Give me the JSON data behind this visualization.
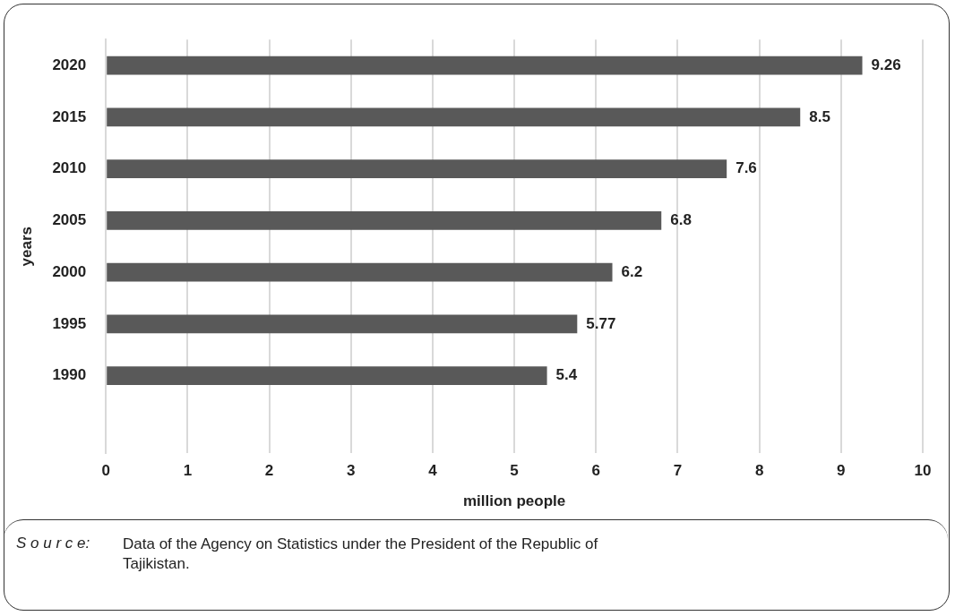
{
  "chart_data": {
    "type": "bar",
    "orientation": "horizontal",
    "xlabel": "million people",
    "ylabel": "years",
    "categories": [
      "2020",
      "2015",
      "2010",
      "2005",
      "2000",
      "1995",
      "1990",
      null
    ],
    "values": [
      9.26,
      8.5,
      7.6,
      6.8,
      6.2,
      5.77,
      5.4,
      null
    ],
    "value_labels": [
      "9.26",
      "8.5",
      "7.6",
      "6.8",
      "6.2",
      "5.77",
      "5.4",
      null
    ],
    "color": "#595959",
    "xlim": [
      0,
      10
    ],
    "xticks": [
      0,
      1,
      2,
      3,
      4,
      5,
      6,
      7,
      8,
      9,
      10
    ],
    "grid": "x",
    "legend": false,
    "annotations": [
      "S o u r c e:",
      "Data of the Agency on Statistics under the President of the Republic of Tajikistan."
    ]
  }
}
